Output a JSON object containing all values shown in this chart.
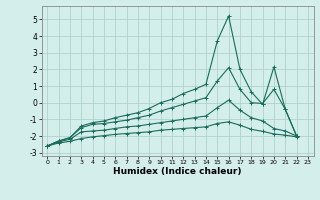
{
  "xlabel": "Humidex (Indice chaleur)",
  "background_color": "#d4eeeb",
  "grid_color": "#aaccc8",
  "line_color": "#1a6b5a",
  "xlim": [
    -0.5,
    23.5
  ],
  "ylim": [
    -3.2,
    5.8
  ],
  "yticks": [
    -3,
    -2,
    -1,
    0,
    1,
    2,
    3,
    4,
    5
  ],
  "xticks": [
    0,
    1,
    2,
    3,
    4,
    5,
    6,
    7,
    8,
    9,
    10,
    11,
    12,
    13,
    14,
    15,
    16,
    17,
    18,
    19,
    20,
    21,
    22,
    23
  ],
  "series": [
    [
      -2.6,
      -2.3,
      -2.1,
      -1.4,
      -1.2,
      -1.1,
      -0.9,
      -0.75,
      -0.6,
      -0.35,
      0.0,
      0.2,
      0.55,
      0.8,
      1.1,
      3.7,
      5.2,
      2.0,
      0.65,
      -0.1,
      2.15,
      -0.4,
      -2.0
    ],
    [
      -2.6,
      -2.3,
      -2.1,
      -1.5,
      -1.3,
      -1.25,
      -1.15,
      -1.05,
      -0.9,
      -0.75,
      -0.5,
      -0.3,
      -0.1,
      0.1,
      0.3,
      1.3,
      2.1,
      0.8,
      0.0,
      -0.05,
      0.8,
      -0.4,
      -2.0
    ],
    [
      -2.6,
      -2.35,
      -2.2,
      -1.75,
      -1.7,
      -1.65,
      -1.55,
      -1.45,
      -1.4,
      -1.3,
      -1.2,
      -1.1,
      -1.0,
      -0.9,
      -0.8,
      -0.3,
      0.15,
      -0.45,
      -0.9,
      -1.1,
      -1.55,
      -1.7,
      -2.0
    ],
    [
      -2.6,
      -2.42,
      -2.32,
      -2.15,
      -2.05,
      -1.98,
      -1.9,
      -1.85,
      -1.8,
      -1.75,
      -1.65,
      -1.6,
      -1.55,
      -1.5,
      -1.45,
      -1.25,
      -1.15,
      -1.35,
      -1.6,
      -1.72,
      -1.88,
      -1.95,
      -2.05
    ]
  ]
}
